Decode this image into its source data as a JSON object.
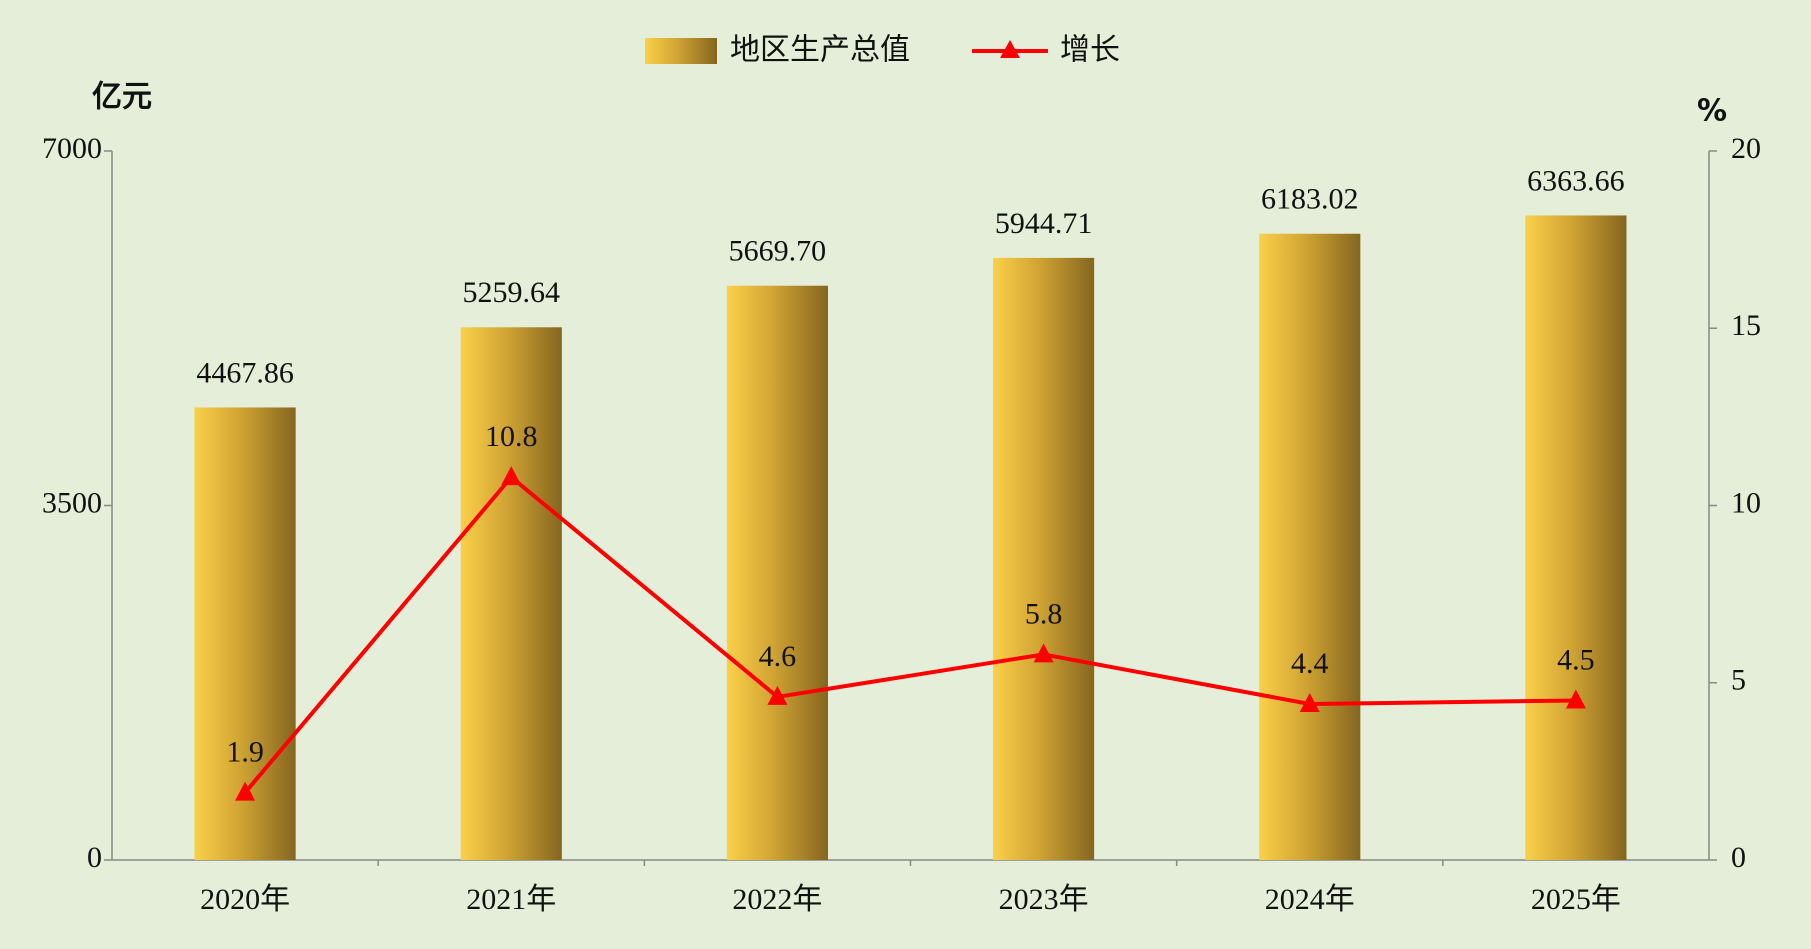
{
  "chart_data": {
    "type": "bar",
    "categories": [
      "2020年",
      "2021年",
      "2022年",
      "2023年",
      "2024年",
      "2025年"
    ],
    "y_label": "亿元",
    "y2_label": "%",
    "ylim": [
      0,
      7000
    ],
    "yticks": [
      0,
      3500,
      7000
    ],
    "y2lim": [
      0,
      20
    ],
    "y2ticks": [
      0,
      5,
      10,
      15,
      20
    ],
    "series": [
      {
        "name": "地区生产总值",
        "color": "#d1a434",
        "values": [
          4467.86,
          5259.64,
          5669.7,
          5944.71,
          6183.02,
          6363.66
        ],
        "value_labels": [
          "4467.86",
          "5259.64",
          "5669.70",
          "5944.71",
          "6183.02",
          "6363.66"
        ]
      },
      {
        "name": "增长",
        "color": "#ff0000",
        "type": "line",
        "axis": "y2",
        "values": [
          1.9,
          10.8,
          4.6,
          5.8,
          4.4,
          4.5
        ]
      }
    ]
  }
}
